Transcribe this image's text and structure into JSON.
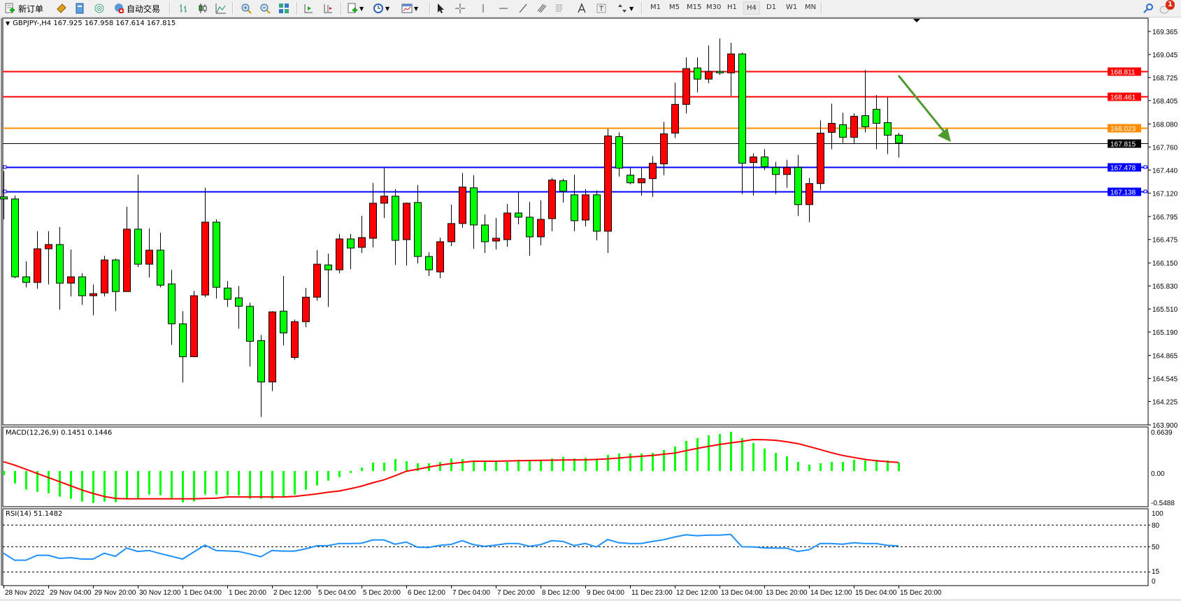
{
  "toolbar": {
    "new_order_label": "新订单",
    "auto_trading_label": "自动交易",
    "timeframes": [
      "M1",
      "M5",
      "M15",
      "M30",
      "H1",
      "H4",
      "D1",
      "W1",
      "MN"
    ],
    "active_timeframe": "H4",
    "notification_count": "1"
  },
  "chart": {
    "header": "GBPJPY-,H4  167.925 167.958 167.614 167.815",
    "symbol": "GBPJPY-",
    "timeframe": "H4",
    "ohlc": {
      "open": 167.925,
      "high": 167.958,
      "low": 167.614,
      "close": 167.815
    },
    "up_color": "#ff0000",
    "down_color": "#00ff00"
  },
  "chart_data": [
    {
      "type": "candlestick",
      "ylim": [
        163.9,
        169.365
      ],
      "y_tick_labels": [
        "169.365",
        "169.045",
        "168.725",
        "168.405",
        "168.080",
        "167.760",
        "167.440",
        "167.120",
        "166.795",
        "166.475",
        "166.150",
        "165.830",
        "165.510",
        "165.190",
        "164.865",
        "164.545",
        "164.225",
        "163.900"
      ],
      "x_tick_labels": [
        "28 Nov 2022",
        "29 Nov 04:00",
        "29 Nov 20:00",
        "30 Nov 12:00",
        "1 Dec 04:00",
        "1 Dec 20:00",
        "2 Dec 12:00",
        "5 Dec 04:00",
        "5 Dec 20:00",
        "6 Dec 12:00",
        "7 Dec 04:00",
        "7 Dec 20:00",
        "8 Dec 12:00",
        "9 Dec 04:00",
        "11 Dec 23:00",
        "12 Dec 12:00",
        "13 Dec 04:00",
        "13 Dec 20:00",
        "14 Dec 12:00",
        "15 Dec 04:00",
        "15 Dec 20:00"
      ],
      "x_tick_every_bars": 4,
      "candles_ohlc": [
        [
          167.067,
          167.427,
          166.755,
          167.038
        ],
        [
          167.038,
          167.086,
          165.937,
          165.957
        ],
        [
          165.957,
          166.171,
          165.811,
          165.879
        ],
        [
          165.879,
          166.59,
          165.791,
          166.346
        ],
        [
          166.346,
          166.59,
          165.85,
          166.405
        ],
        [
          166.405,
          166.648,
          165.499,
          165.869
        ],
        [
          165.869,
          166.337,
          165.684,
          165.957
        ],
        [
          165.957,
          166.006,
          165.567,
          165.694
        ],
        [
          165.694,
          165.85,
          165.421,
          165.723
        ],
        [
          165.733,
          166.249,
          165.684,
          166.191
        ],
        [
          166.191,
          166.21,
          165.48,
          165.752
        ],
        [
          165.752,
          166.931,
          165.752,
          166.619
        ],
        [
          166.619,
          167.378,
          166.093,
          166.132
        ],
        [
          166.132,
          166.629,
          165.947,
          166.327
        ],
        [
          166.327,
          166.57,
          165.811,
          165.84
        ],
        [
          165.859,
          166.054,
          165.012,
          165.304
        ],
        [
          165.304,
          165.48,
          164.487,
          164.847
        ],
        [
          164.847,
          165.762,
          164.847,
          165.694
        ],
        [
          165.704,
          167.193,
          165.674,
          166.716
        ],
        [
          166.716,
          166.755,
          165.655,
          165.811
        ],
        [
          165.801,
          165.898,
          165.538,
          165.645
        ],
        [
          165.665,
          165.83,
          165.236,
          165.548
        ],
        [
          165.548,
          165.597,
          164.71,
          165.061
        ],
        [
          165.071,
          165.149,
          164.009,
          164.496
        ],
        [
          164.496,
          165.48,
          164.37,
          165.47
        ],
        [
          165.48,
          165.967,
          165.003,
          165.178
        ],
        [
          164.837,
          165.363,
          164.808,
          165.334
        ],
        [
          165.334,
          165.801,
          165.256,
          165.674
        ],
        [
          165.674,
          166.327,
          165.626,
          166.132
        ],
        [
          166.122,
          166.278,
          165.538,
          166.054
        ],
        [
          166.054,
          166.551,
          166.006,
          166.483
        ],
        [
          166.483,
          166.551,
          166.064,
          166.356
        ],
        [
          166.366,
          166.804,
          166.288,
          166.502
        ],
        [
          166.492,
          167.262,
          166.366,
          166.979
        ],
        [
          166.979,
          167.476,
          166.775,
          167.077
        ],
        [
          167.077,
          167.174,
          166.122,
          166.463
        ],
        [
          166.473,
          166.989,
          166.113,
          166.979
        ],
        [
          166.989,
          167.232,
          166.142,
          166.239
        ],
        [
          166.239,
          166.298,
          165.967,
          166.054
        ],
        [
          166.025,
          166.502,
          165.937,
          166.444
        ],
        [
          166.444,
          166.96,
          166.385,
          166.697
        ],
        [
          166.697,
          167.398,
          166.638,
          167.203
        ],
        [
          167.193,
          167.369,
          166.346,
          166.677
        ],
        [
          166.677,
          166.823,
          166.288,
          166.444
        ],
        [
          166.453,
          166.775,
          166.337,
          166.492
        ],
        [
          166.473,
          166.969,
          166.376,
          166.843
        ],
        [
          166.843,
          167.135,
          166.687,
          166.785
        ],
        [
          166.785,
          166.999,
          166.249,
          166.512
        ],
        [
          166.512,
          167.018,
          166.395,
          166.755
        ],
        [
          166.765,
          167.33,
          166.59,
          167.301
        ],
        [
          167.291,
          167.32,
          166.989,
          167.145
        ],
        [
          167.096,
          167.378,
          166.59,
          166.736
        ],
        [
          166.745,
          167.174,
          166.658,
          167.096
        ],
        [
          167.096,
          167.155,
          166.463,
          166.59
        ],
        [
          166.59,
          168.011,
          166.288,
          167.914
        ],
        [
          167.904,
          167.963,
          167.349,
          167.466
        ],
        [
          167.369,
          167.466,
          167.242,
          167.262
        ],
        [
          167.262,
          167.466,
          167.086,
          167.32
        ],
        [
          167.32,
          167.632,
          167.067,
          167.534
        ],
        [
          167.525,
          168.109,
          167.369,
          167.943
        ],
        [
          167.953,
          168.654,
          167.885,
          168.352
        ],
        [
          168.352,
          169.005,
          168.226,
          168.849
        ],
        [
          168.858,
          169.005,
          168.518,
          168.703
        ],
        [
          168.703,
          169.17,
          168.644,
          168.81
        ],
        [
          168.81,
          169.267,
          168.761,
          168.79
        ],
        [
          168.79,
          169.209,
          168.469,
          169.053
        ],
        [
          169.053,
          169.073,
          167.106,
          167.534
        ],
        [
          167.544,
          167.671,
          167.086,
          167.622
        ],
        [
          167.622,
          167.729,
          167.437,
          167.486
        ],
        [
          167.476,
          167.554,
          167.106,
          167.378
        ],
        [
          167.378,
          167.583,
          167.193,
          167.476
        ],
        [
          167.476,
          167.651,
          166.804,
          166.96
        ],
        [
          166.96,
          167.33,
          166.716,
          167.252
        ],
        [
          167.252,
          168.128,
          167.164,
          167.953
        ],
        [
          167.963,
          168.362,
          167.729,
          168.089
        ],
        [
          168.07,
          168.235,
          167.817,
          167.895
        ],
        [
          167.895,
          168.226,
          167.807,
          168.187
        ],
        [
          168.196,
          168.829,
          167.963,
          168.041
        ],
        [
          168.284,
          168.479,
          167.729,
          168.089
        ],
        [
          168.099,
          168.45,
          167.661,
          167.924
        ],
        [
          167.925,
          167.958,
          167.614,
          167.815
        ]
      ],
      "horizontal_lines": [
        {
          "price": 168.811,
          "label": "168.811",
          "color": "#ff0000"
        },
        {
          "price": 168.461,
          "label": "168.461",
          "color": "#ff0000"
        },
        {
          "price": 168.023,
          "label": "168.023",
          "color": "#ff8c00"
        },
        {
          "price": 167.815,
          "label": "167.815",
          "color": "#000000"
        },
        {
          "price": 167.478,
          "label": "167.478",
          "color": "#0000ff"
        },
        {
          "price": 167.138,
          "label": "167.138",
          "color": "#0000ff"
        }
      ],
      "arrow": {
        "from": {
          "bar": 81,
          "price": 168.811
        },
        "to": {
          "bar": 85,
          "price": 167.83
        },
        "color": "#4f9a2f"
      }
    },
    {
      "type": "bar+line",
      "title": "MACD(12,26,9) 0.1451 0.1446",
      "ylim": [
        -0.5488,
        0.6639
      ],
      "y_tick_labels": [
        "0.6639",
        "0.00",
        "-0.5488"
      ],
      "histogram_color": "#00ff00",
      "signal_color": "#ff0000",
      "histogram": [
        -0.071,
        -0.209,
        -0.316,
        -0.351,
        -0.379,
        -0.434,
        -0.469,
        -0.517,
        -0.54,
        -0.517,
        -0.529,
        -0.469,
        -0.469,
        -0.398,
        -0.41,
        -0.469,
        -0.529,
        -0.517,
        -0.398,
        -0.398,
        -0.41,
        -0.41,
        -0.469,
        -0.469,
        -0.469,
        -0.446,
        -0.398,
        -0.316,
        -0.245,
        -0.162,
        -0.103,
        -0.032,
        0.059,
        0.142,
        0.142,
        0.201,
        0.166,
        0.13,
        0.13,
        0.154,
        0.213,
        0.201,
        0.166,
        0.166,
        0.154,
        0.154,
        0.189,
        0.166,
        0.178,
        0.213,
        0.237,
        0.213,
        0.225,
        0.189,
        0.272,
        0.296,
        0.296,
        0.296,
        0.308,
        0.355,
        0.414,
        0.509,
        0.556,
        0.604,
        0.627,
        0.663,
        0.556,
        0.473,
        0.379,
        0.308,
        0.249,
        0.154,
        0.107,
        0.13,
        0.154,
        0.154,
        0.189,
        0.178,
        0.189,
        0.178,
        0.1451
      ],
      "signal": [
        0.158,
        0.1,
        0.03,
        -0.04,
        -0.11,
        -0.18,
        -0.25,
        -0.32,
        -0.38,
        -0.43,
        -0.465,
        -0.47,
        -0.47,
        -0.47,
        -0.47,
        -0.47,
        -0.47,
        -0.47,
        -0.465,
        -0.46,
        -0.44,
        -0.44,
        -0.44,
        -0.44,
        -0.44,
        -0.44,
        -0.43,
        -0.41,
        -0.387,
        -0.36,
        -0.339,
        -0.3,
        -0.256,
        -0.2,
        -0.15,
        -0.08,
        -0.004,
        0.03,
        0.067,
        0.1,
        0.126,
        0.146,
        0.166,
        0.166,
        0.166,
        0.17,
        0.174,
        0.178,
        0.181,
        0.184,
        0.186,
        0.188,
        0.189,
        0.197,
        0.205,
        0.221,
        0.237,
        0.25,
        0.264,
        0.284,
        0.304,
        0.344,
        0.383,
        0.417,
        0.45,
        0.476,
        0.501,
        0.533,
        0.53,
        0.521,
        0.495,
        0.465,
        0.415,
        0.363,
        0.31,
        0.264,
        0.23,
        0.197,
        0.175,
        0.158,
        0.1446
      ]
    },
    {
      "type": "line",
      "title": "RSI(14) 51.1482",
      "ylim": [
        0,
        100
      ],
      "y_tick_labels": [
        "100",
        "80",
        "50",
        "15",
        "0"
      ],
      "levels": [
        80,
        50,
        15
      ],
      "color": "#1e90ff",
      "values": [
        41.0,
        31.3,
        31.3,
        38.1,
        38.1,
        33.9,
        34.8,
        32.9,
        32.9,
        41.0,
        36.8,
        48.1,
        43.5,
        44.8,
        40.6,
        36.8,
        32.9,
        42.6,
        52.3,
        44.8,
        44.2,
        43.5,
        40.0,
        36.1,
        44.8,
        43.9,
        43.9,
        47.1,
        51.3,
        51.6,
        54.5,
        54.5,
        54.8,
        59.4,
        59.4,
        53.5,
        56.5,
        49.4,
        49.0,
        51.9,
        53.2,
        58.4,
        52.9,
        50.6,
        52.3,
        54.5,
        54.5,
        50.6,
        52.9,
        58.4,
        57.4,
        51.6,
        54.5,
        49.7,
        60.0,
        55.5,
        54.5,
        54.5,
        57.4,
        59.7,
        63.5,
        66.5,
        65.2,
        66.1,
        66.1,
        67.1,
        50.0,
        49.7,
        48.4,
        48.1,
        48.1,
        43.5,
        45.8,
        54.5,
        54.5,
        53.5,
        55.5,
        54.5,
        54.5,
        51.9,
        51.1482
      ]
    }
  ]
}
